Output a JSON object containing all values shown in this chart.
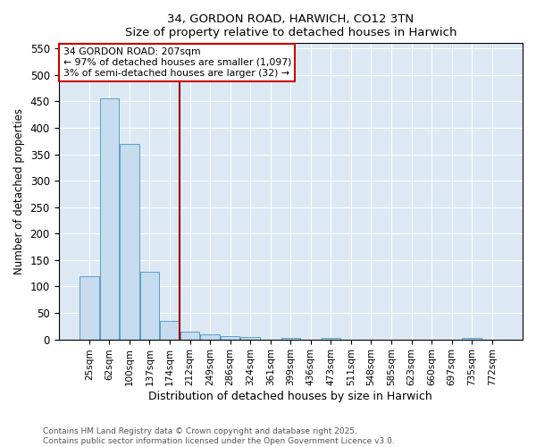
{
  "title1": "34, GORDON ROAD, HARWICH, CO12 3TN",
  "title2": "Size of property relative to detached houses in Harwich",
  "xlabel": "Distribution of detached houses by size in Harwich",
  "ylabel": "Number of detached properties",
  "categories": [
    "25sqm",
    "62sqm",
    "100sqm",
    "137sqm",
    "174sqm",
    "212sqm",
    "249sqm",
    "286sqm",
    "324sqm",
    "361sqm",
    "399sqm",
    "436sqm",
    "473sqm",
    "511sqm",
    "548sqm",
    "585sqm",
    "623sqm",
    "660sqm",
    "697sqm",
    "735sqm",
    "772sqm"
  ],
  "values": [
    120,
    455,
    370,
    128,
    35,
    15,
    9,
    6,
    5,
    0,
    3,
    0,
    3,
    0,
    0,
    0,
    0,
    0,
    0,
    3,
    0
  ],
  "bar_color": "#c6dcee",
  "bar_edge_color": "#5b9dc9",
  "red_line_index": 5,
  "annotation_line1": "34 GORDON ROAD: 207sqm",
  "annotation_line2": "← 97% of detached houses are smaller (1,097)",
  "annotation_line3": "3% of semi-detached houses are larger (32) →",
  "ylim": [
    0,
    560
  ],
  "yticks": [
    0,
    50,
    100,
    150,
    200,
    250,
    300,
    350,
    400,
    450,
    500,
    550
  ],
  "footer1": "Contains HM Land Registry data © Crown copyright and database right 2025.",
  "footer2": "Contains public sector information licensed under the Open Government Licence v3.0.",
  "bg_color": "#ffffff",
  "plot_bg_color": "#dce9f5"
}
